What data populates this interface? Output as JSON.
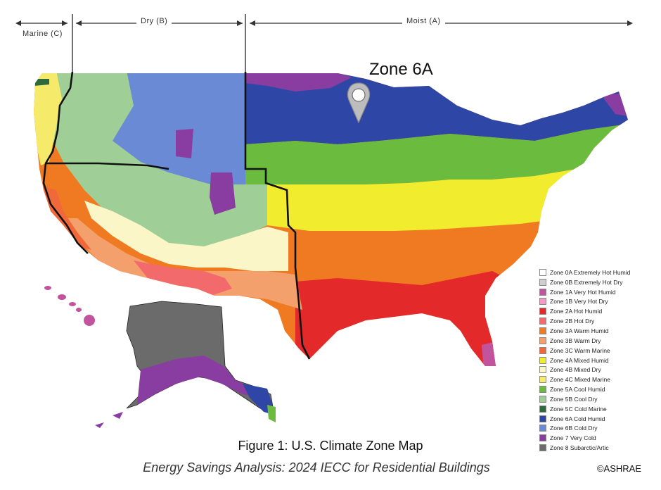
{
  "header": {
    "marine_label": "Marine (C)",
    "dry_label": "Dry (B)",
    "moist_label": "Moist (A)"
  },
  "callout": {
    "label": "Zone 6A"
  },
  "legend": {
    "items": [
      {
        "label": "Zone 0A Extremely Hot Humid",
        "color": "#ffffff"
      },
      {
        "label": "Zone 0B Extremely Hot Dry",
        "color": "#cfcfcf"
      },
      {
        "label": "Zone 1A Very Hot Humid",
        "color": "#c2549e"
      },
      {
        "label": "Zone 1B Very Hot Dry",
        "color": "#f49ac7"
      },
      {
        "label": "Zone 2A Hot Humid",
        "color": "#e4292a"
      },
      {
        "label": "Zone 2B Hot Dry",
        "color": "#f26a6b"
      },
      {
        "label": "Zone 3A Warm Humid",
        "color": "#ef7a22"
      },
      {
        "label": "Zone 3B Warm Dry",
        "color": "#f4a06d"
      },
      {
        "label": "Zone 3C Warm Marine",
        "color": "#f1683a"
      },
      {
        "label": "Zone 4A Mixed Humid",
        "color": "#f2ec2e"
      },
      {
        "label": "Zone 4B Mixed Dry",
        "color": "#fbf6c7"
      },
      {
        "label": "Zone 4C Mixed Marine",
        "color": "#f5ea6a"
      },
      {
        "label": "Zone 5A Cool Humid",
        "color": "#6bbb3f"
      },
      {
        "label": "Zone 5B Cool Dry",
        "color": "#9fcf96"
      },
      {
        "label": "Zone 5C Cold Marine",
        "color": "#2e6b3a"
      },
      {
        "label": "Zone 6A Cold Humid",
        "color": "#2e47a6"
      },
      {
        "label": "Zone 6B Cold Dry",
        "color": "#6a8ad6"
      },
      {
        "label": "Zone 7 Very Cold",
        "color": "#8a3da0"
      },
      {
        "label": "Zone 8 Subarctic/Artic",
        "color": "#6b6b6b"
      }
    ]
  },
  "figure": {
    "title": "Figure 1: U.S. Climate Zone Map",
    "subtitle": "Energy Savings Analysis: 2024 IECC for Residential Buildings",
    "copyright": "©ASHRAE"
  }
}
